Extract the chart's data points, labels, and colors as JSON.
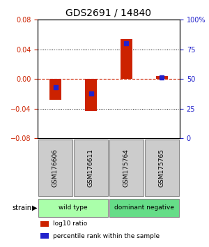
{
  "title": "GDS2691 / 14840",
  "samples": [
    "GSM176606",
    "GSM176611",
    "GSM175764",
    "GSM175765"
  ],
  "log10_ratio": [
    -0.028,
    -0.043,
    0.054,
    0.004
  ],
  "percentile_rank": [
    43,
    38,
    80,
    51
  ],
  "ylim_left": [
    -0.08,
    0.08
  ],
  "ylim_right": [
    0,
    100
  ],
  "yticks_left": [
    -0.08,
    -0.04,
    0,
    0.04,
    0.08
  ],
  "yticks_right": [
    0,
    25,
    50,
    75,
    100
  ],
  "ytick_labels_right": [
    "0",
    "25",
    "50",
    "75",
    "100%"
  ],
  "bar_color": "#cc2200",
  "dot_color": "#2222cc",
  "zero_line_color": "#cc2200",
  "dot_line_color": "#2222cc",
  "groups": [
    {
      "name": "wild type",
      "samples": [
        0,
        1
      ],
      "color": "#aaffaa"
    },
    {
      "name": "dominant negative",
      "samples": [
        2,
        3
      ],
      "color": "#66dd88"
    }
  ],
  "group_row_label": "strain",
  "legend": [
    {
      "color": "#cc2200",
      "label": "log10 ratio"
    },
    {
      "color": "#2222cc",
      "label": "percentile rank within the sample"
    }
  ],
  "bg_color": "#ffffff",
  "plot_bg": "#ffffff",
  "sample_box_color": "#cccccc",
  "sample_box_border": "#888888"
}
